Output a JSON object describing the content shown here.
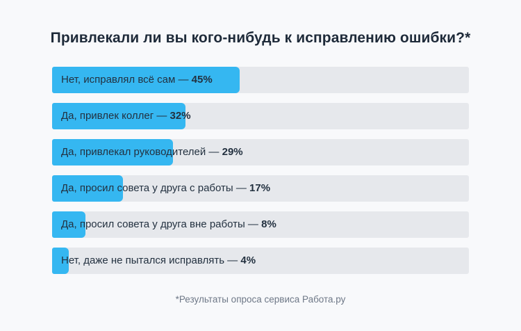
{
  "title": "Привлекали ли вы кого-нибудь к исправлению ошибки?*",
  "footnote": "*Результаты опроса сервиса Работа.ру",
  "colors": {
    "background": "#f8f9fb",
    "bar_fill": "#35b7f1",
    "bar_track": "#e6e8ec",
    "title_text": "#1e2a39",
    "label_text": "#233140",
    "footnote_text": "#6e7887"
  },
  "chart_data": {
    "type": "bar",
    "orientation": "horizontal",
    "title": "Привлекали ли вы кого-нибудь к исправлению ошибки?*",
    "categories": [
      "Нет, исправлял всё сам",
      "Да, привлек коллег",
      "Да, привлекал руководителей",
      "Да, просил совета у друга с работы",
      "Да, просил совета у друга вне работы",
      "Нет, даже не пытался исправлять"
    ],
    "values": [
      45,
      32,
      29,
      17,
      8,
      4
    ],
    "unit": "%",
    "separator": " — ",
    "xlim": [
      0,
      100
    ],
    "grid": false,
    "legend": null,
    "labels_inline": true,
    "annotation_source": "*Результаты опроса сервиса Работа.ру"
  }
}
